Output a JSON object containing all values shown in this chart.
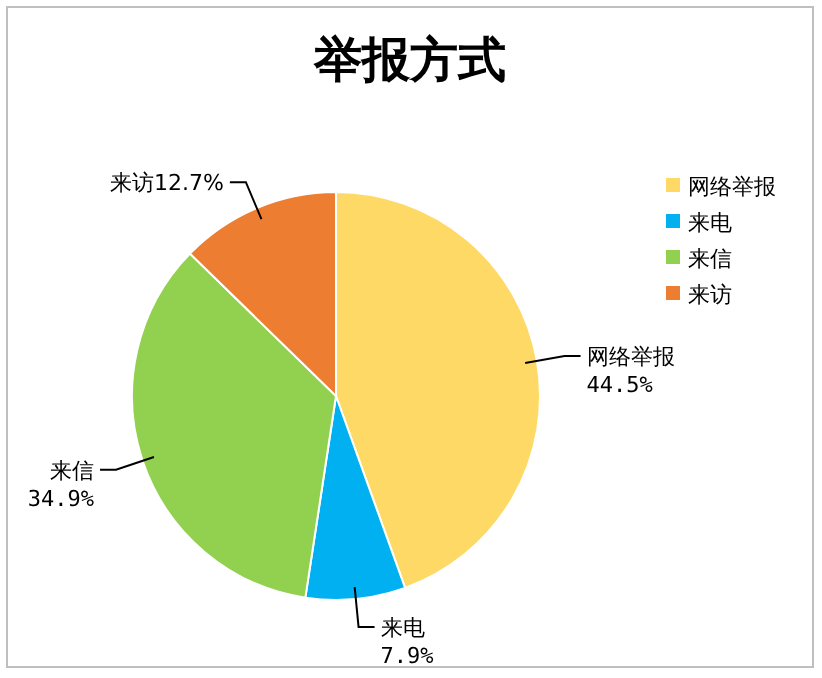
{
  "chart_data": {
    "type": "pie",
    "title": "举报方式",
    "categories": [
      "网络举报",
      "来电",
      "来信",
      "来访"
    ],
    "values": [
      44.5,
      7.9,
      34.9,
      12.7
    ],
    "value_labels": [
      "44.5%",
      "7.9%",
      "34.9%",
      "12.7%"
    ],
    "colors": [
      "#ffd966",
      "#00b0f0",
      "#92d050",
      "#ed7d31"
    ],
    "legend": "right"
  }
}
